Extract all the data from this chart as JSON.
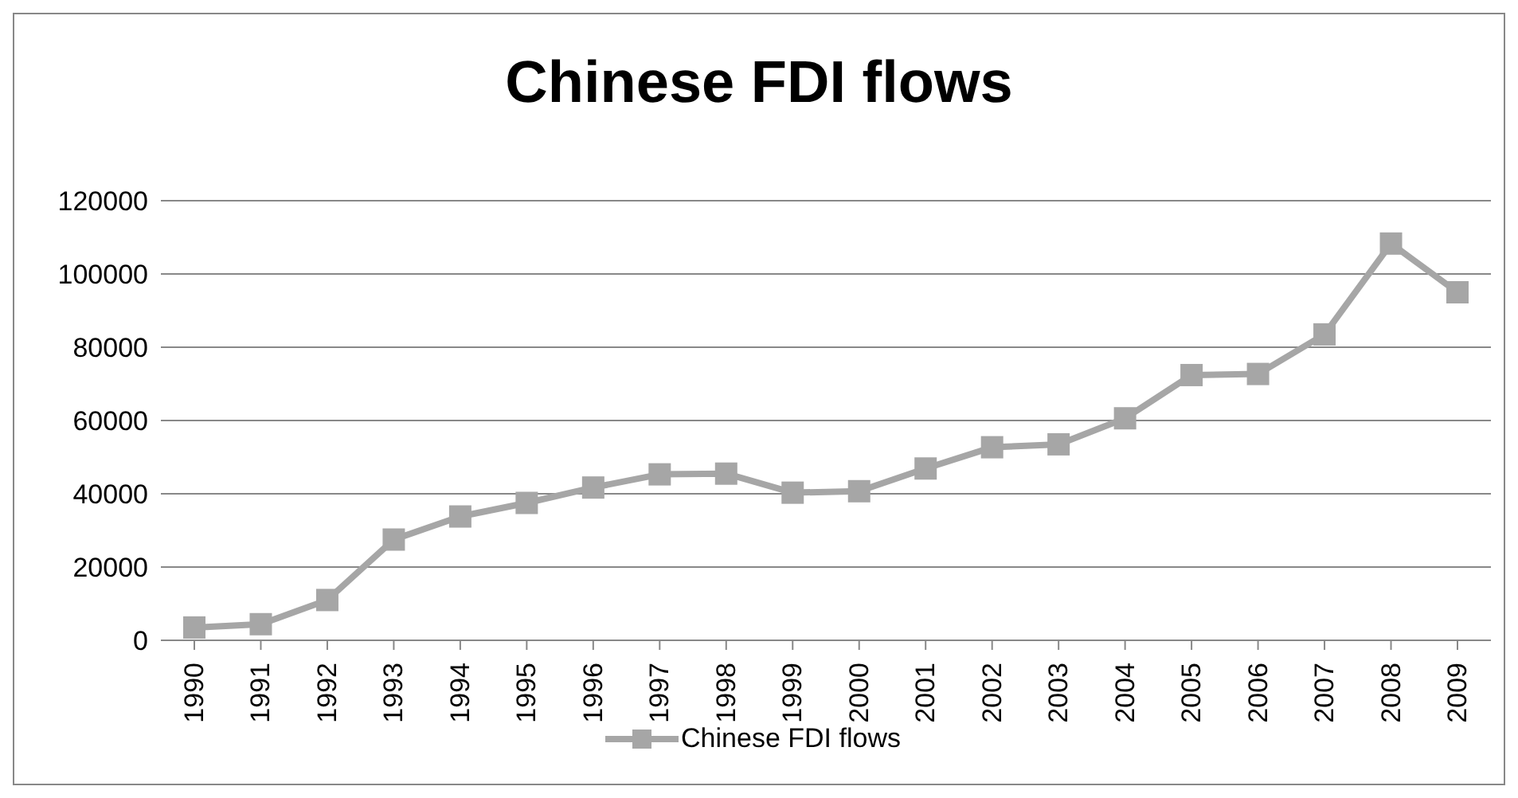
{
  "chart_data": {
    "type": "line",
    "title": "Chinese FDI flows",
    "categories": [
      "1990",
      "1991",
      "1992",
      "1993",
      "1994",
      "1995",
      "1996",
      "1997",
      "1998",
      "1999",
      "2000",
      "2001",
      "2002",
      "2003",
      "2004",
      "2005",
      "2006",
      "2007",
      "2008",
      "2009"
    ],
    "series": [
      {
        "name": "Chinese FDI flows",
        "color": "#a6a6a6",
        "values": [
          3500,
          4400,
          11000,
          27500,
          33800,
          37500,
          41700,
          45300,
          45500,
          40300,
          40700,
          46900,
          52700,
          53500,
          60600,
          72400,
          72700,
          83500,
          108300,
          95000
        ]
      }
    ],
    "ylim": [
      0,
      120000
    ],
    "yticks": [
      0,
      20000,
      40000,
      60000,
      80000,
      100000,
      120000
    ],
    "grid": "y",
    "legend": "bottom",
    "marker": "square",
    "line_style": "solid"
  }
}
